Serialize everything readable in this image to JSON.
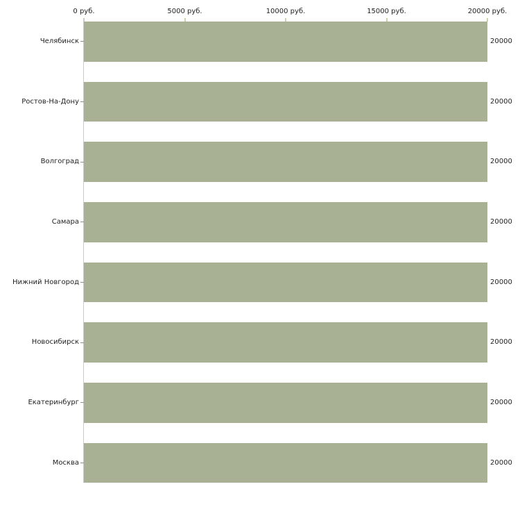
{
  "chart_data": {
    "type": "bar",
    "orientation": "horizontal",
    "title": "",
    "categories": [
      "Челябинск",
      "Ростов-На-Дону",
      "Волгоград",
      "Самара",
      "Нижний Новгород",
      "Новосибирск",
      "Екатеринбург",
      "Москва"
    ],
    "values": [
      20000,
      20000,
      20000,
      20000,
      20000,
      20000,
      20000,
      20000
    ],
    "bar_value_labels": [
      "20000",
      "20000",
      "20000",
      "20000",
      "20000",
      "20000",
      "20000",
      "20000"
    ],
    "x_axis": {
      "position": "top",
      "tick_labels": [
        "0 руб.",
        "5000 руб.",
        "10000 руб.",
        "15000 руб.",
        "20000 руб."
      ],
      "tick_values": [
        0,
        5000,
        10000,
        15000,
        20000
      ],
      "xlim": [
        0,
        20000
      ],
      "unit": "руб."
    },
    "grid": false,
    "legend": "none",
    "colors": {
      "bar_fill": "#a9b194",
      "axis_line": "#cccccc",
      "x_tick_mark": "#cfcfa9",
      "y_tick_mark": "#8e8e8e",
      "label_text": "#1f1f1f",
      "background": "#ffffff"
    }
  }
}
